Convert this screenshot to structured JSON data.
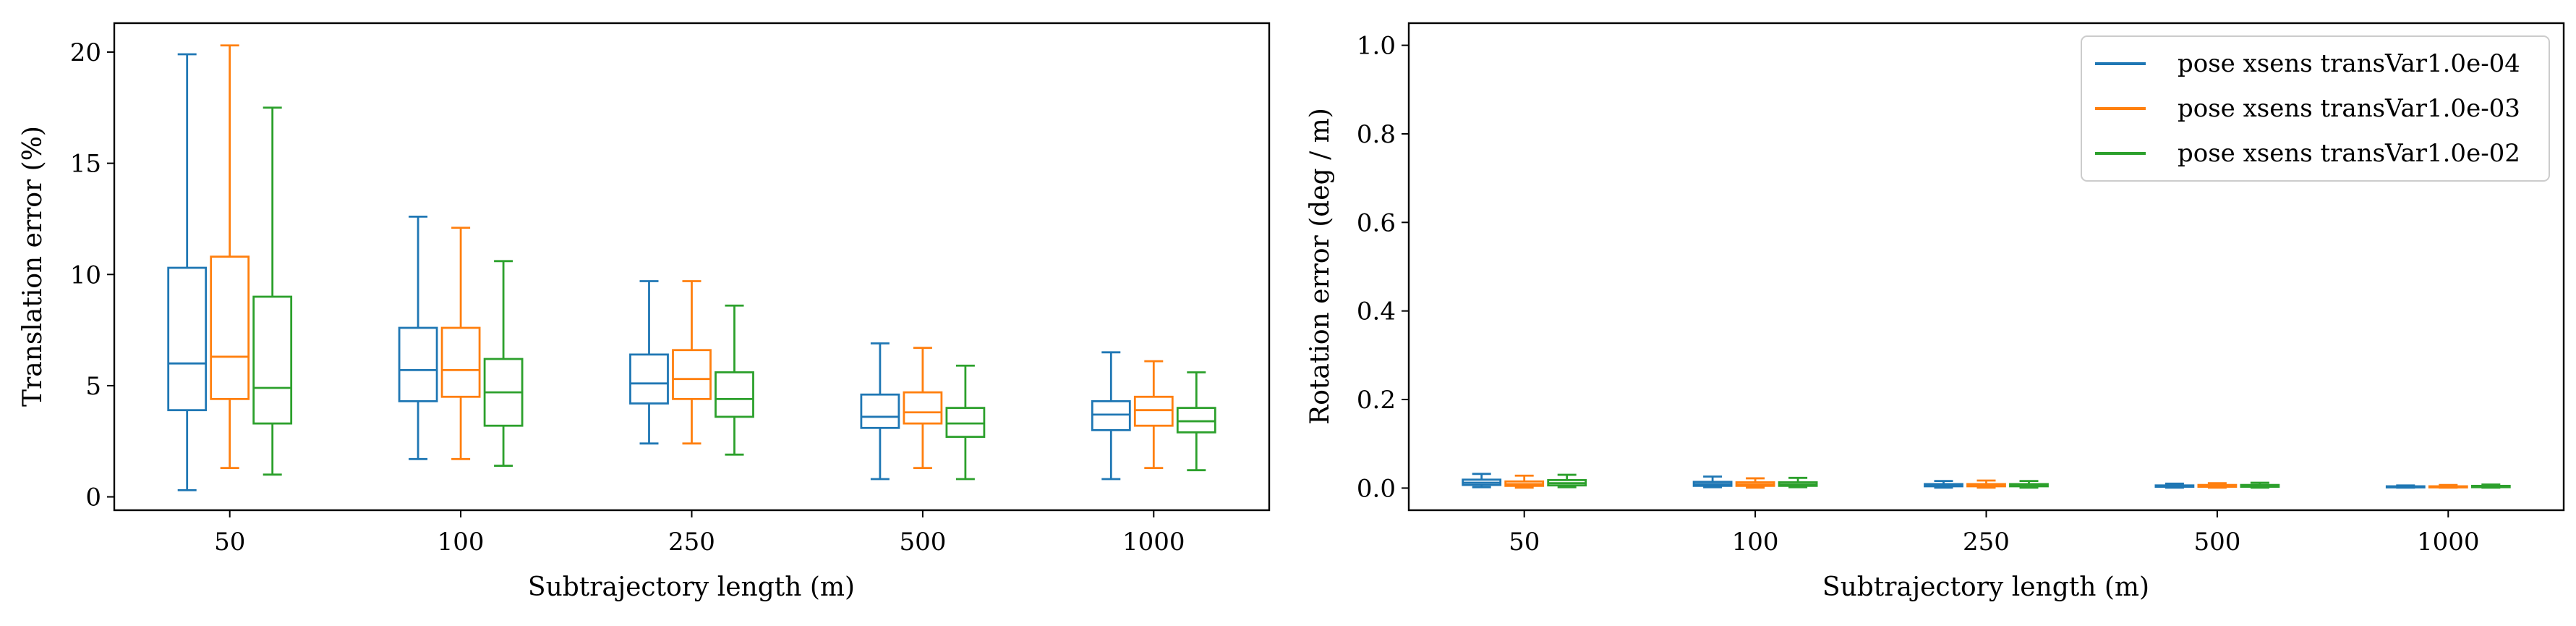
{
  "colors": {
    "series_1": "#1f77b4",
    "series_2": "#ff7f0e",
    "series_3": "#2ca02c"
  },
  "legend": {
    "placement": "top-right",
    "entries": [
      "pose xsens transVar1.0e-04",
      "pose xsens transVar1.0e-03",
      "pose xsens transVar1.0e-02"
    ]
  },
  "chart_data": [
    {
      "type": "boxplot",
      "title": "",
      "xlabel": "Subtrajectory length (m)",
      "ylabel": "Translation error (%)",
      "categories": [
        "50",
        "100",
        "250",
        "500",
        "1000"
      ],
      "ylim": [
        -0.6,
        21.3
      ],
      "yticks": [
        0,
        5,
        10,
        15,
        20
      ],
      "series": [
        {
          "name": "pose xsens transVar1.0e-04",
          "boxes": [
            {
              "whislo": 0.3,
              "q1": 3.9,
              "med": 6.0,
              "q3": 10.3,
              "whishi": 19.9
            },
            {
              "whislo": 1.7,
              "q1": 4.3,
              "med": 5.7,
              "q3": 7.6,
              "whishi": 12.6
            },
            {
              "whislo": 2.4,
              "q1": 4.2,
              "med": 5.1,
              "q3": 6.4,
              "whishi": 9.7
            },
            {
              "whislo": 0.8,
              "q1": 3.1,
              "med": 3.6,
              "q3": 4.6,
              "whishi": 6.9
            },
            {
              "whislo": 0.8,
              "q1": 3.0,
              "med": 3.7,
              "q3": 4.3,
              "whishi": 6.5
            }
          ]
        },
        {
          "name": "pose xsens transVar1.0e-03",
          "boxes": [
            {
              "whislo": 1.3,
              "q1": 4.4,
              "med": 6.3,
              "q3": 10.8,
              "whishi": 20.3
            },
            {
              "whislo": 1.7,
              "q1": 4.5,
              "med": 5.7,
              "q3": 7.6,
              "whishi": 12.1
            },
            {
              "whislo": 2.4,
              "q1": 4.4,
              "med": 5.3,
              "q3": 6.6,
              "whishi": 9.7
            },
            {
              "whislo": 1.3,
              "q1": 3.3,
              "med": 3.8,
              "q3": 4.7,
              "whishi": 6.7
            },
            {
              "whislo": 1.3,
              "q1": 3.2,
              "med": 3.9,
              "q3": 4.5,
              "whishi": 6.1
            }
          ]
        },
        {
          "name": "pose xsens transVar1.0e-02",
          "boxes": [
            {
              "whislo": 1.0,
              "q1": 3.3,
              "med": 4.9,
              "q3": 9.0,
              "whishi": 17.5
            },
            {
              "whislo": 1.4,
              "q1": 3.2,
              "med": 4.7,
              "q3": 6.2,
              "whishi": 10.6
            },
            {
              "whislo": 1.9,
              "q1": 3.6,
              "med": 4.4,
              "q3": 5.6,
              "whishi": 8.6
            },
            {
              "whislo": 0.8,
              "q1": 2.7,
              "med": 3.3,
              "q3": 4.0,
              "whishi": 5.9
            },
            {
              "whislo": 1.2,
              "q1": 2.9,
              "med": 3.4,
              "q3": 4.0,
              "whishi": 5.6
            }
          ]
        }
      ]
    },
    {
      "type": "boxplot",
      "title": "",
      "xlabel": "Subtrajectory length (m)",
      "ylabel": "Rotation error (deg / m)",
      "categories": [
        "50",
        "100",
        "250",
        "500",
        "1000"
      ],
      "ylim": [
        -0.05,
        1.05
      ],
      "yticks": [
        "0.0",
        "0.2",
        "0.4",
        "0.6",
        "0.8",
        "1.0"
      ],
      "legend_placement": "top-right",
      "series": [
        {
          "name": "pose xsens transVar1.0e-04",
          "boxes": [
            {
              "whislo": 0.002,
              "q1": 0.007,
              "med": 0.012,
              "q3": 0.019,
              "whishi": 0.032
            },
            {
              "whislo": 0.002,
              "q1": 0.005,
              "med": 0.009,
              "q3": 0.014,
              "whishi": 0.026
            },
            {
              "whislo": 0.001,
              "q1": 0.004,
              "med": 0.006,
              "q3": 0.009,
              "whishi": 0.016
            },
            {
              "whislo": 0.001,
              "q1": 0.003,
              "med": 0.004,
              "q3": 0.006,
              "whishi": 0.01
            },
            {
              "whislo": 0.001,
              "q1": 0.002,
              "med": 0.003,
              "q3": 0.004,
              "whishi": 0.006
            }
          ]
        },
        {
          "name": "pose xsens transVar1.0e-03",
          "boxes": [
            {
              "whislo": 0.001,
              "q1": 0.005,
              "med": 0.009,
              "q3": 0.015,
              "whishi": 0.028
            },
            {
              "whislo": 0.001,
              "q1": 0.005,
              "med": 0.008,
              "q3": 0.013,
              "whishi": 0.022
            },
            {
              "whislo": 0.001,
              "q1": 0.004,
              "med": 0.006,
              "q3": 0.009,
              "whishi": 0.017
            },
            {
              "whislo": 0.001,
              "q1": 0.003,
              "med": 0.005,
              "q3": 0.007,
              "whishi": 0.011
            },
            {
              "whislo": 0.001,
              "q1": 0.002,
              "med": 0.003,
              "q3": 0.004,
              "whishi": 0.007
            }
          ]
        },
        {
          "name": "pose xsens transVar1.0e-02",
          "boxes": [
            {
              "whislo": 0.002,
              "q1": 0.006,
              "med": 0.011,
              "q3": 0.018,
              "whishi": 0.03
            },
            {
              "whislo": 0.002,
              "q1": 0.005,
              "med": 0.008,
              "q3": 0.013,
              "whishi": 0.023
            },
            {
              "whislo": 0.001,
              "q1": 0.004,
              "med": 0.006,
              "q3": 0.009,
              "whishi": 0.016
            },
            {
              "whislo": 0.001,
              "q1": 0.003,
              "med": 0.005,
              "q3": 0.007,
              "whishi": 0.012
            },
            {
              "whislo": 0.001,
              "q1": 0.002,
              "med": 0.004,
              "q3": 0.005,
              "whishi": 0.008
            }
          ]
        }
      ]
    }
  ]
}
